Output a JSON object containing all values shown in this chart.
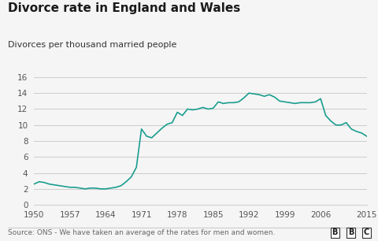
{
  "title": "Divorce rate in England and Wales",
  "subtitle": "Divorces per thousand married people",
  "source": "Source: ONS - We have taken an average of the rates for men and women.",
  "line_color": "#1a9e8f",
  "background_color": "#f5f5f5",
  "grid_color": "#cccccc",
  "years": [
    1950,
    1951,
    1952,
    1953,
    1954,
    1955,
    1956,
    1957,
    1958,
    1959,
    1960,
    1961,
    1962,
    1963,
    1964,
    1965,
    1966,
    1967,
    1968,
    1969,
    1970,
    1971,
    1972,
    1973,
    1974,
    1975,
    1976,
    1977,
    1978,
    1979,
    1980,
    1981,
    1982,
    1983,
    1984,
    1985,
    1986,
    1987,
    1988,
    1989,
    1990,
    1991,
    1992,
    1993,
    1994,
    1995,
    1996,
    1997,
    1998,
    1999,
    2000,
    2001,
    2002,
    2003,
    2004,
    2005,
    2006,
    2007,
    2008,
    2009,
    2010,
    2011,
    2012,
    2013,
    2014,
    2015
  ],
  "values": [
    2.6,
    2.9,
    2.8,
    2.6,
    2.5,
    2.4,
    2.3,
    2.2,
    2.2,
    2.1,
    2.0,
    2.1,
    2.1,
    2.0,
    2.0,
    2.1,
    2.2,
    2.4,
    2.9,
    3.5,
    4.7,
    9.5,
    8.6,
    8.4,
    9.0,
    9.6,
    10.1,
    10.3,
    11.6,
    11.2,
    12.0,
    11.9,
    12.0,
    12.2,
    12.0,
    12.1,
    12.9,
    12.7,
    12.8,
    12.8,
    12.9,
    13.4,
    14.0,
    13.9,
    13.8,
    13.6,
    13.8,
    13.5,
    13.0,
    12.9,
    12.8,
    12.7,
    12.8,
    12.8,
    12.8,
    12.9,
    13.3,
    11.2,
    10.5,
    10.0,
    10.0,
    10.3,
    9.5,
    9.2,
    9.0,
    8.6
  ],
  "xticks": [
    1950,
    1957,
    1964,
    1971,
    1978,
    1985,
    1992,
    1999,
    2006,
    2015
  ],
  "yticks": [
    0,
    2,
    4,
    6,
    8,
    10,
    12,
    14,
    16
  ],
  "ylim": [
    0,
    16
  ],
  "xlim": [
    1950,
    2015
  ],
  "title_fontsize": 11,
  "subtitle_fontsize": 8,
  "tick_fontsize": 7.5,
  "source_fontsize": 6.5
}
